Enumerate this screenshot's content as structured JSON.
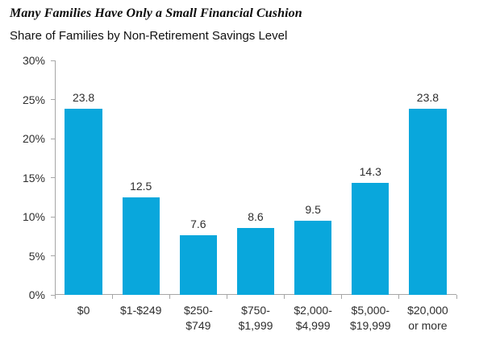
{
  "chart_data": {
    "type": "bar",
    "title": "Many Families Have Only a Small Financial Cushion",
    "subtitle": "Share of Families by Non-Retirement Savings Level",
    "categories": [
      "$0",
      "$1-$249",
      "$250-\n$749",
      "$750-\n$1,999",
      "$2,000-\n$4,999",
      "$5,000-\n$19,999",
      "$20,000\nor more"
    ],
    "values": [
      23.8,
      12.5,
      7.6,
      8.6,
      9.5,
      14.3,
      23.8
    ],
    "value_labels": [
      "23.8",
      "12.5",
      "7.6",
      "8.6",
      "9.5",
      "14.3",
      "23.8"
    ],
    "ylabel": "",
    "xlabel": "",
    "ylim": [
      0,
      30
    ],
    "ytick_step": 5,
    "ytick_suffix": "%",
    "ytick_labels": [
      "0%",
      "5%",
      "10%",
      "15%",
      "20%",
      "25%",
      "30%"
    ],
    "grid": false,
    "legend": false,
    "bar_color": "#09a7dc",
    "axis_color": "#a6a6a6",
    "label_color": "#2e2e2e",
    "title_color": "#0d0d0d"
  }
}
